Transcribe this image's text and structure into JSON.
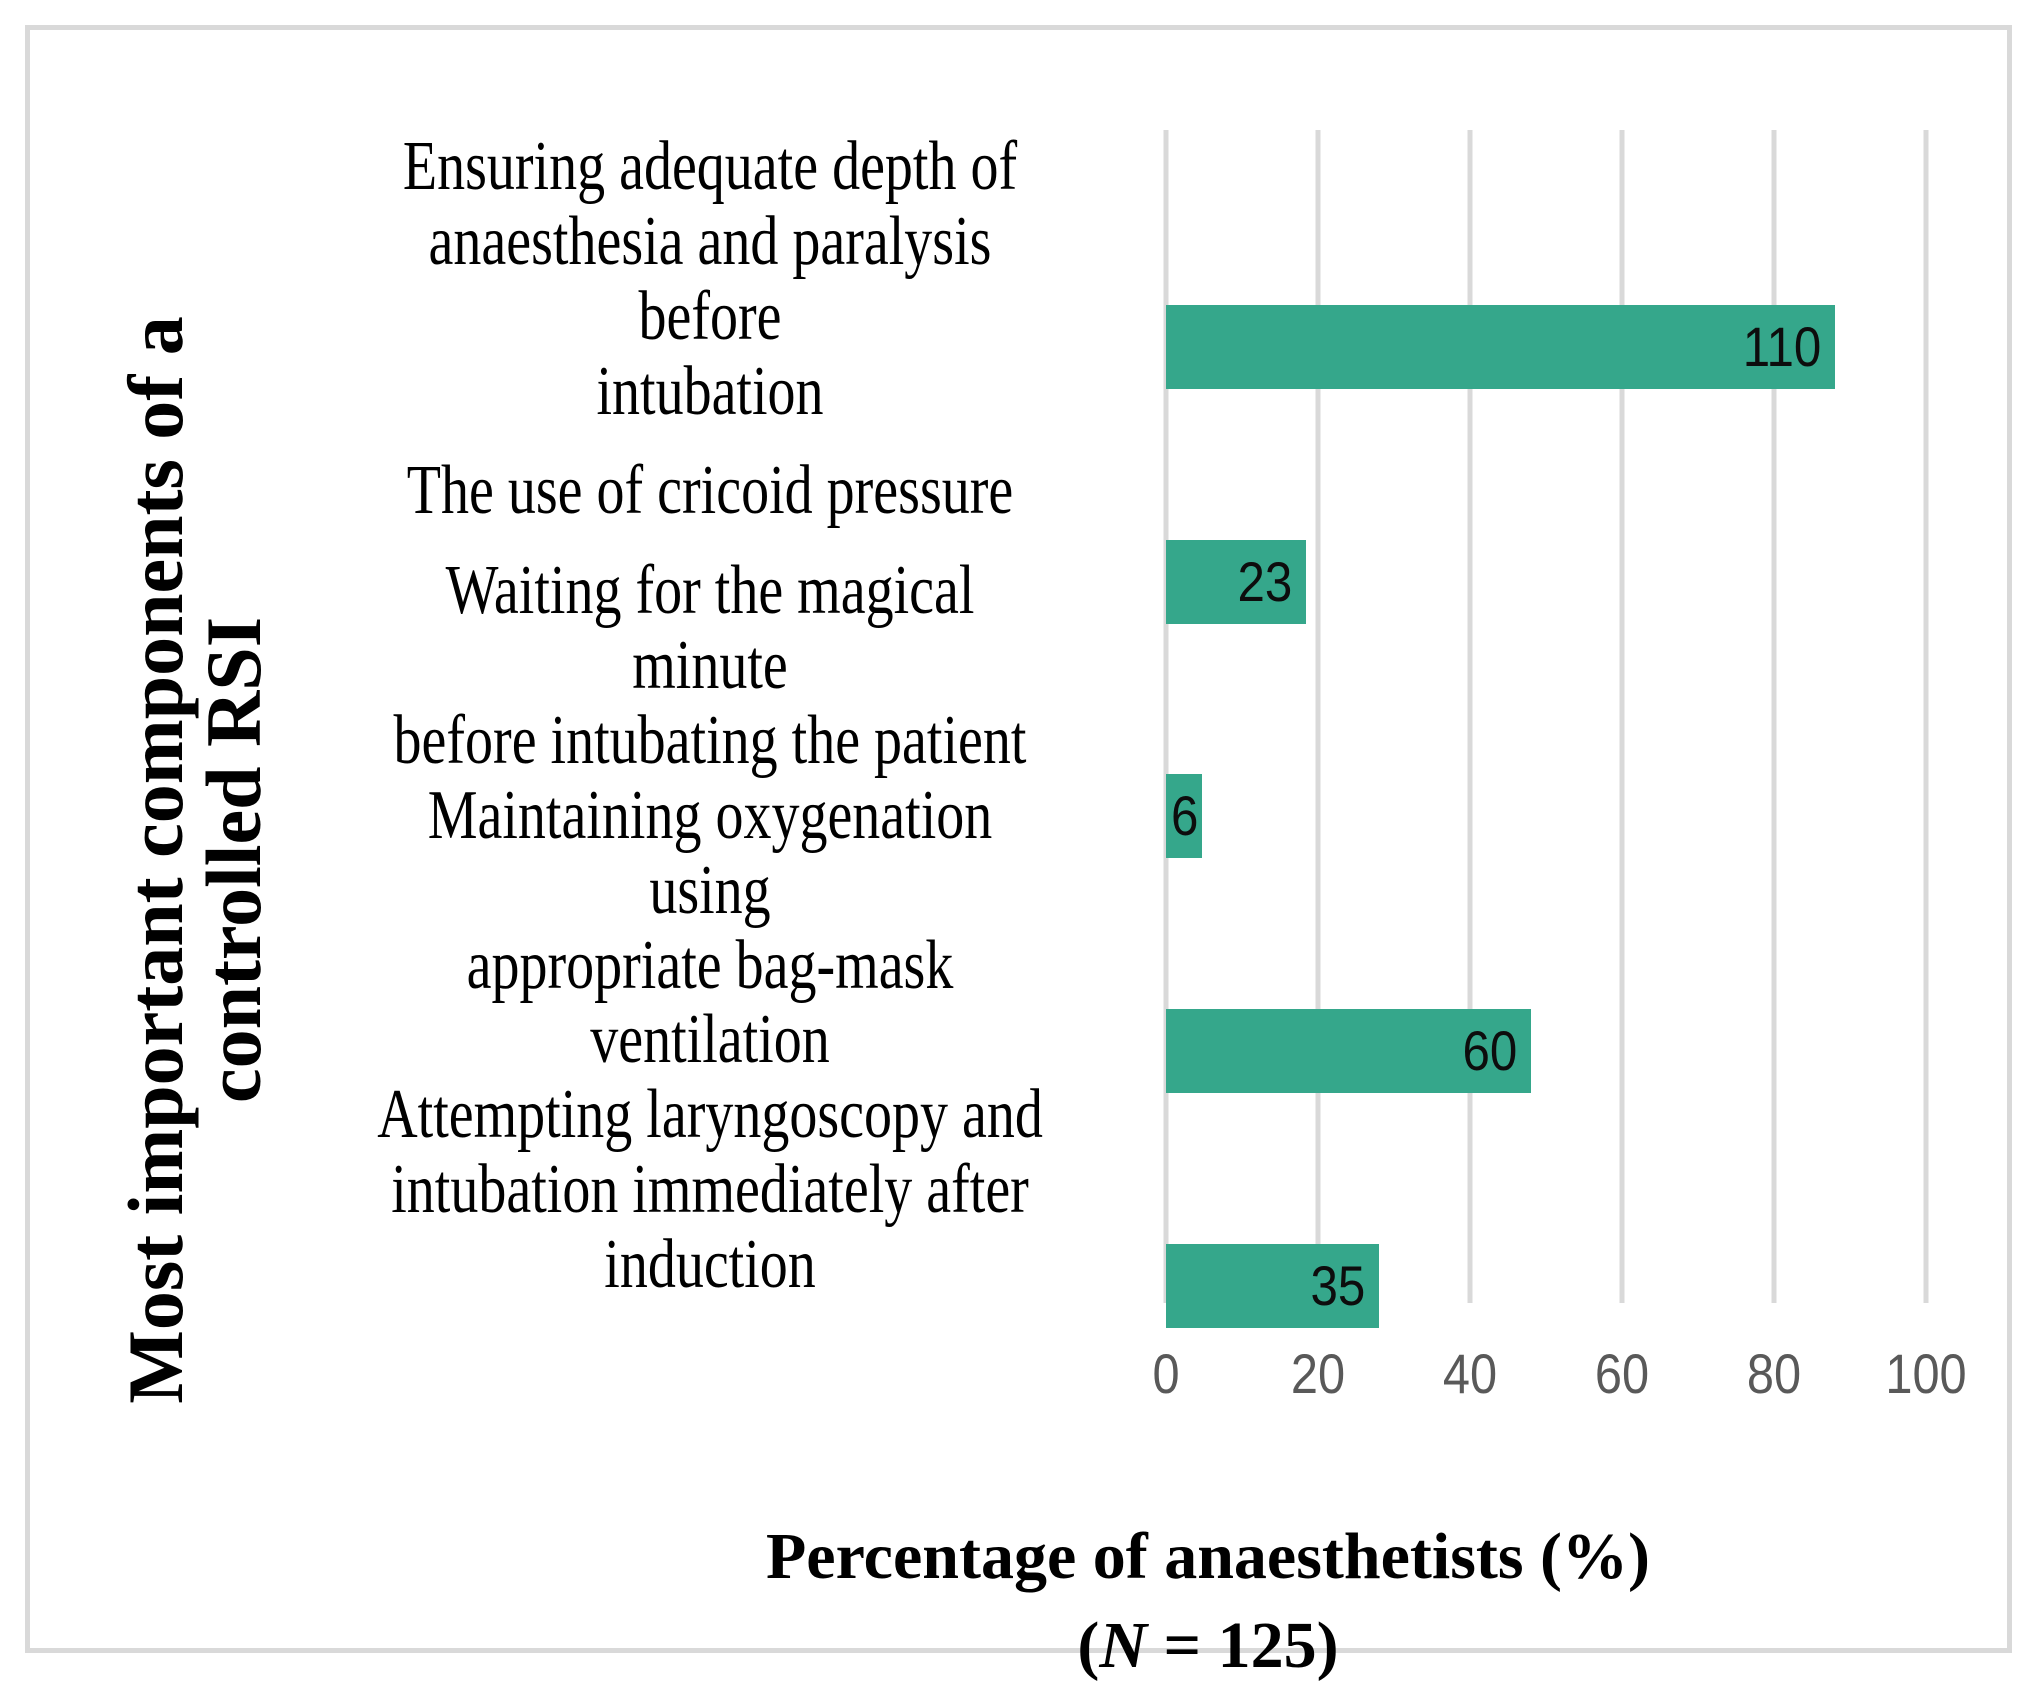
{
  "chart_data": {
    "type": "bar",
    "orientation": "horizontal",
    "title": "",
    "categories": [
      "Ensuring adequate depth of\nanaesthesia and paralysis before\nintubation",
      "The use of cricoid pressure",
      "Waiting for the magical minute\nbefore intubating the patient",
      "Maintaining oxygenation using\nappropriate bag-mask ventilation",
      "Attempting laryngoscopy and\nintubation immediately after\ninduction"
    ],
    "values": [
      110,
      23,
      6,
      60,
      35
    ],
    "n_total": 125,
    "percentages": [
      88,
      18.4,
      4.8,
      48,
      28
    ],
    "xlabel": "Percentage of anaesthetists (%)\n(N = 125)",
    "ylabel": "Most important components of a\ncontrolled RSI",
    "xticks": [
      0,
      20,
      40,
      60,
      80,
      100
    ],
    "xlim": [
      0,
      115
    ],
    "grid": "vertical-major",
    "legend": "none",
    "bar_color": "#35a78b",
    "gridline_color": "#d9d9d9",
    "tick_label_color": "#595959",
    "label_color": "#000000"
  },
  "xtitle_parts": {
    "line1": "Percentage of anaesthetists (%)",
    "open": "(",
    "n": "N",
    "rest": " = 125)"
  }
}
